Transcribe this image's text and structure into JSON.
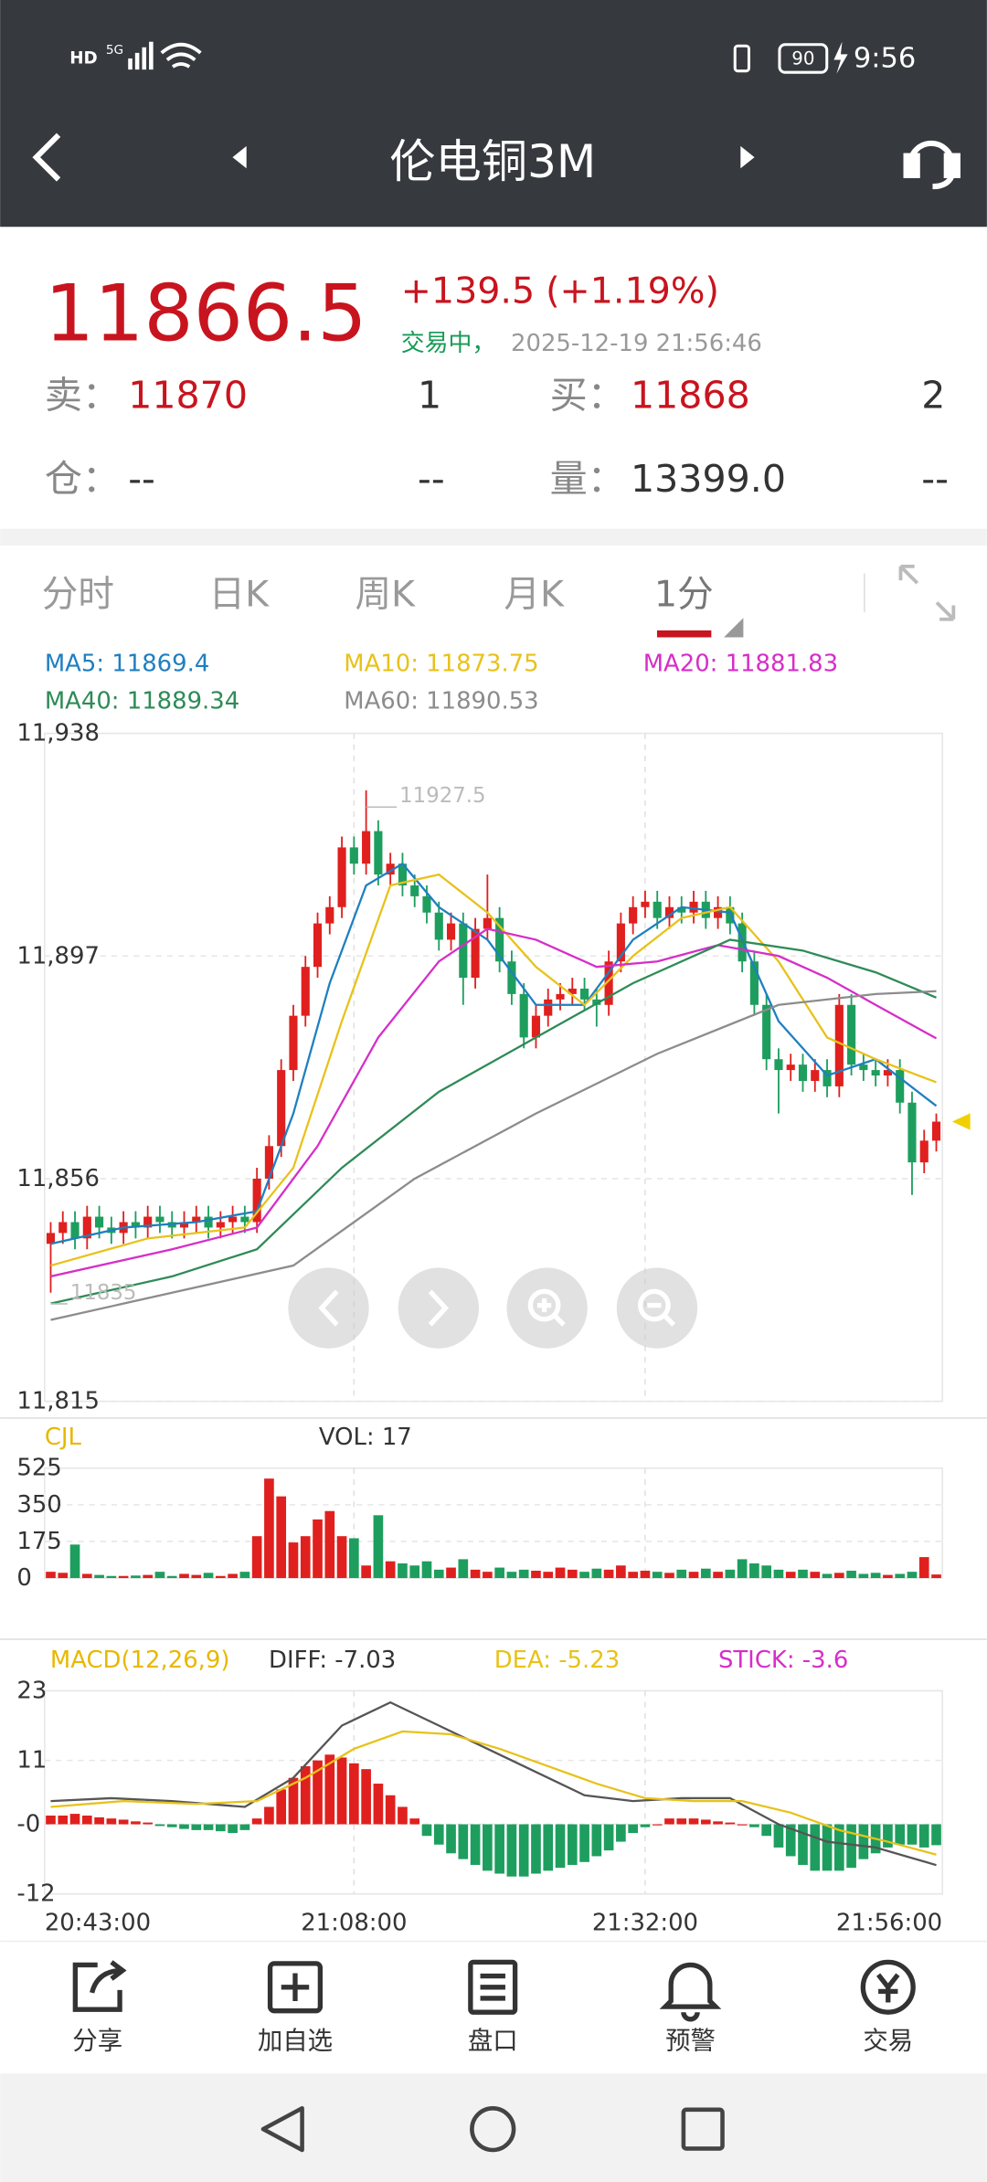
{
  "status_bar": {
    "network": "HD",
    "signal": "5G",
    "battery": "90",
    "time": "9:56"
  },
  "nav": {
    "title": "伦电铜3M"
  },
  "quote": {
    "price": "11866.5",
    "change": "+139.5",
    "change_pct": "(+1.19%)",
    "status": "交易中，",
    "datetime": "2025-12-19 21:56:46",
    "rows": [
      [
        "卖：",
        "11870",
        "1",
        "买：",
        "11868",
        "2"
      ],
      [
        "仓：",
        "--",
        "--",
        "量：",
        "13399.0",
        "--"
      ]
    ]
  },
  "tabs": [
    "分时",
    "日K",
    "周K",
    "月K",
    "1分"
  ],
  "chart_data": [
    {
      "type": "candlestick",
      "up_color": "#e0201e",
      "down_color": "#1e9e5e",
      "ylim": [
        11815,
        11938
      ],
      "yticks": [
        {
          "value": 11815,
          "label": "11,815"
        },
        {
          "value": 11856,
          "label": "11,856"
        },
        {
          "value": 11897,
          "label": "11,897"
        },
        {
          "value": 11938,
          "label": "11,938"
        }
      ],
      "grid": true,
      "max_label": "11927.5",
      "min_label": "11835",
      "open": [
        11844,
        11846,
        11848,
        11845,
        11849,
        11847,
        11846,
        11848,
        11847,
        11849,
        11848,
        11847,
        11848,
        11849,
        11847,
        11848,
        11849,
        11848,
        11856,
        11862,
        11876,
        11886,
        11895,
        11903,
        11906,
        11917,
        11914,
        11920,
        11912,
        11914,
        11910,
        11908,
        11905,
        11900,
        11903,
        11893,
        11902,
        11904,
        11896,
        11890,
        11882,
        11886,
        11889,
        11890,
        11891,
        11889,
        11888,
        11896,
        11903,
        11906,
        11907,
        11904,
        11906,
        11905,
        11907,
        11904,
        11906,
        11903,
        11896,
        11888,
        11878,
        11876,
        11877,
        11874,
        11876,
        11873,
        11888,
        11877,
        11876,
        11875,
        11876,
        11870,
        11859,
        11863
      ],
      "high": [
        11848,
        11850,
        11850,
        11851,
        11851,
        11849,
        11850,
        11850,
        11851,
        11851,
        11850,
        11850,
        11851,
        11851,
        11850,
        11851,
        11851,
        11858,
        11864,
        11878,
        11888,
        11897,
        11905,
        11908,
        11919,
        11919,
        11927.5,
        11922,
        11916,
        11916,
        11912,
        11910,
        11907,
        11905,
        11905,
        11904,
        11912,
        11906,
        11898,
        11892,
        11888,
        11891,
        11892,
        11893,
        11893,
        11891,
        11898,
        11905,
        11908,
        11909,
        11909,
        11908,
        11908,
        11909,
        11909,
        11908,
        11908,
        11905,
        11898,
        11890,
        11880,
        11879,
        11879,
        11878,
        11878,
        11890,
        11890,
        11879,
        11878,
        11878,
        11878,
        11872,
        11865,
        11868
      ],
      "low": [
        11835,
        11844,
        11843,
        11843,
        11845,
        11844,
        11844,
        11845,
        11845,
        11846,
        11845,
        11845,
        11846,
        11845,
        11845,
        11846,
        11846,
        11846,
        11854,
        11860,
        11874,
        11884,
        11893,
        11901,
        11904,
        11912,
        11912,
        11910,
        11910,
        11908,
        11906,
        11903,
        11898,
        11898,
        11888,
        11891,
        11900,
        11894,
        11888,
        11880,
        11880,
        11884,
        11887,
        11888,
        11887,
        11884,
        11886,
        11894,
        11901,
        11904,
        11902,
        11902,
        11903,
        11903,
        11902,
        11902,
        11901,
        11894,
        11886,
        11876,
        11868,
        11874,
        11872,
        11872,
        11871,
        11871,
        11875,
        11874,
        11873,
        11873,
        11868,
        11853,
        11857,
        11861
      ],
      "close": [
        11846,
        11848,
        11845,
        11849,
        11847,
        11846,
        11848,
        11847,
        11849,
        11848,
        11847,
        11848,
        11849,
        11847,
        11848,
        11849,
        11848,
        11856,
        11862,
        11876,
        11886,
        11895,
        11903,
        11906,
        11917,
        11914,
        11920,
        11912,
        11914,
        11910,
        11908,
        11905,
        11900,
        11903,
        11893,
        11902,
        11904,
        11896,
        11890,
        11882,
        11886,
        11889,
        11890,
        11891,
        11889,
        11888,
        11896,
        11903,
        11906,
        11907,
        11904,
        11906,
        11905,
        11907,
        11904,
        11906,
        11903,
        11896,
        11888,
        11878,
        11876,
        11877,
        11874,
        11876,
        11873,
        11888,
        11877,
        11876,
        11875,
        11876,
        11870,
        11859,
        11863,
        11866.5
      ],
      "series": [
        {
          "name": "MA5: 11869.4",
          "color": "#1f7fc0",
          "x": [
            0,
            6,
            12,
            17,
            20,
            23,
            26,
            29,
            32,
            36,
            40,
            44,
            48,
            52,
            56,
            60,
            64,
            68,
            73
          ],
          "values": [
            11844,
            11847,
            11848,
            11850,
            11868,
            11892,
            11910,
            11914,
            11906,
            11900,
            11888,
            11888,
            11900,
            11906,
            11905,
            11885,
            11875,
            11878,
            11869.4
          ]
        },
        {
          "name": "MA10: 11873.75",
          "color": "#e8c21a",
          "x": [
            0,
            8,
            16,
            20,
            24,
            28,
            32,
            36,
            40,
            44,
            48,
            52,
            56,
            60,
            64,
            68,
            73
          ],
          "values": [
            11840,
            11845,
            11847,
            11858,
            11885,
            11910,
            11912,
            11905,
            11895,
            11888,
            11897,
            11904,
            11906,
            11896,
            11882,
            11878,
            11873.75
          ]
        },
        {
          "name": "MA20: 11881.83",
          "color": "#d62ec8",
          "x": [
            0,
            10,
            17,
            22,
            27,
            32,
            36,
            40,
            45,
            50,
            55,
            60,
            64,
            68,
            73
          ],
          "values": [
            11838,
            11843,
            11847,
            11862,
            11882,
            11896,
            11902,
            11900,
            11895,
            11896,
            11899,
            11897,
            11893,
            11888,
            11881.83
          ]
        },
        {
          "name": "MA40: 11889.34",
          "color": "#2e8b57",
          "x": [
            0,
            10,
            17,
            24,
            32,
            40,
            48,
            56,
            62,
            68,
            73
          ],
          "values": [
            11833,
            11838,
            11843,
            11858,
            11872,
            11882,
            11892,
            11900,
            11898,
            11894,
            11889.34
          ]
        },
        {
          "name": "MA60: 11890.53",
          "color": "#8c8c8c",
          "x": [
            0,
            10,
            20,
            30,
            40,
            50,
            60,
            68,
            73
          ],
          "values": [
            11830,
            11835,
            11840,
            11856,
            11868,
            11879,
            11888,
            11890,
            11890.53
          ]
        }
      ]
    },
    {
      "type": "bar",
      "title": "CJL",
      "label": "VOL: 17",
      "title_color": "#e8b800",
      "ylim": [
        0,
        525
      ],
      "yticks": [
        0,
        175,
        350,
        525
      ],
      "values": [
        30,
        25,
        160,
        20,
        15,
        10,
        10,
        12,
        15,
        30,
        10,
        20,
        15,
        25,
        10,
        20,
        30,
        200,
        475,
        390,
        170,
        200,
        280,
        320,
        200,
        190,
        60,
        300,
        80,
        70,
        60,
        80,
        40,
        50,
        90,
        40,
        30,
        50,
        30,
        40,
        35,
        30,
        50,
        40,
        30,
        45,
        40,
        60,
        30,
        35,
        30,
        25,
        40,
        30,
        45,
        30,
        40,
        90,
        70,
        60,
        40,
        30,
        40,
        30,
        20,
        25,
        35,
        20,
        25,
        15,
        20,
        30,
        100,
        17
      ]
    },
    {
      "type": "macd",
      "title": "MACD(12,26,9)",
      "title_color": "#e8b800",
      "ylim": [
        -12,
        23
      ],
      "yticks": [
        -12,
        {
          "value": 0,
          "label": "-0"
        },
        11,
        23
      ],
      "categories": [
        "20:43:00",
        null,
        null,
        null,
        null,
        null,
        null,
        null,
        null,
        null,
        null,
        null,
        null,
        null,
        null,
        null,
        null,
        null,
        null,
        null,
        null,
        null,
        null,
        null,
        null,
        "21:08:00",
        null,
        null,
        null,
        null,
        null,
        null,
        null,
        null,
        null,
        null,
        null,
        null,
        null,
        null,
        null,
        null,
        null,
        null,
        null,
        null,
        null,
        null,
        null,
        "21:32:00",
        null,
        null,
        null,
        null,
        null,
        null,
        null,
        null,
        null,
        null,
        null,
        null,
        null,
        null,
        null,
        null,
        null,
        null,
        null,
        null,
        null,
        null,
        null,
        "21:56:00"
      ],
      "stick": {
        "name": "STICK: -3.6",
        "color": "#d62ec8",
        "up_color": "#e0201e",
        "down_color": "#1e9e5e",
        "values": [
          1.5,
          1.5,
          1.8,
          1.5,
          1.2,
          1,
          0.8,
          0.5,
          0.3,
          -0.3,
          -0.5,
          -0.8,
          -1,
          -1,
          -1.2,
          -1.5,
          -1,
          1,
          3,
          6,
          8,
          10,
          11,
          12,
          11.5,
          10.5,
          9.5,
          7,
          5,
          3,
          1,
          -2,
          -3.5,
          -5,
          -6,
          -7,
          -8,
          -8.5,
          -9,
          -9,
          -8.5,
          -8,
          -7.5,
          -7,
          -6.5,
          -5.5,
          -4.5,
          -3,
          -1.5,
          -0.5,
          0,
          1,
          1,
          1,
          0.8,
          0.5,
          0.3,
          0,
          -0.5,
          -2,
          -4,
          -5.5,
          -7,
          -8,
          -8,
          -8,
          -7.5,
          -6,
          -5,
          -4,
          -3.5,
          -3.5,
          -4,
          -3.6
        ]
      },
      "series": [
        {
          "name": "DIFF: -7.03",
          "color": "#555555",
          "x": [
            0,
            5,
            10,
            16,
            20,
            24,
            28,
            32,
            36,
            40,
            44,
            48,
            52,
            56,
            60,
            64,
            68,
            73
          ],
          "values": [
            4,
            4.5,
            4,
            3,
            8,
            17,
            21,
            17,
            13,
            9,
            5,
            4,
            4.5,
            4.5,
            0,
            -3,
            -4,
            -7.03
          ]
        },
        {
          "name": "DEA: -5.23",
          "color": "#e8c21a",
          "x": [
            0,
            6,
            12,
            17,
            21,
            25,
            29,
            33,
            37,
            41,
            45,
            49,
            53,
            57,
            61,
            65,
            69,
            73
          ],
          "values": [
            3,
            4,
            3.5,
            4,
            8,
            13,
            16,
            15.5,
            13,
            10,
            7,
            4.5,
            4,
            4,
            2,
            -1,
            -3,
            -5.23
          ]
        }
      ]
    }
  ],
  "toolbar": [
    "分享",
    "加自选",
    "盘口",
    "预警",
    "交易"
  ]
}
